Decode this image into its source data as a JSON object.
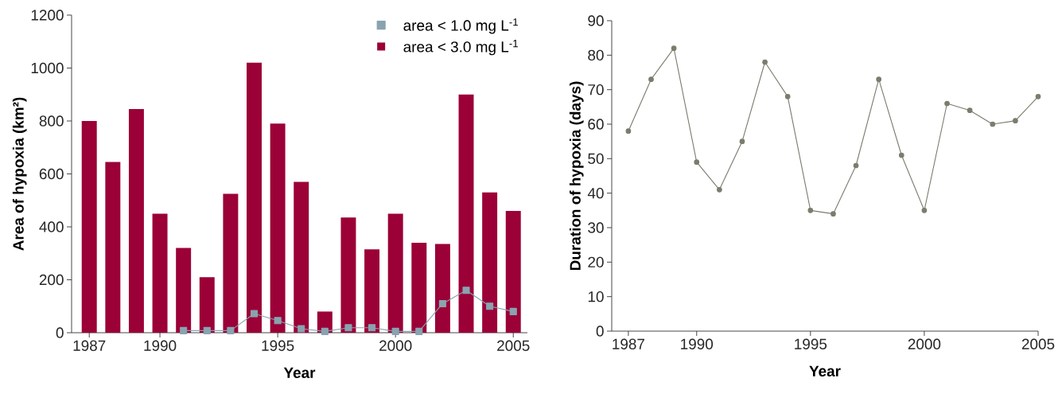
{
  "chart_data": [
    {
      "type": "bar",
      "xlabel": "Year",
      "ylabel": "Area of hypoxia (km²)",
      "xlim": [
        1986.25,
        2005.6
      ],
      "ylim": [
        0,
        1200
      ],
      "xticks": [
        1987,
        1990,
        1995,
        2000,
        2005
      ],
      "yticks": [
        0,
        200,
        400,
        600,
        800,
        1000,
        1200
      ],
      "legend": "top right",
      "series": [
        {
          "name": "area < 3.0 mg L$^{-1}$",
          "type": "bar",
          "color": "#9b0037",
          "x": [
            1987,
            1988,
            1989,
            1990,
            1991,
            1992,
            1993,
            1994,
            1995,
            1996,
            1997,
            1998,
            1999,
            2000,
            2001,
            2002,
            2003,
            2004,
            2005
          ],
          "values": [
            800,
            645,
            845,
            450,
            320,
            210,
            525,
            1020,
            790,
            570,
            80,
            435,
            315,
            450,
            340,
            335,
            900,
            530,
            460
          ]
        },
        {
          "name": "area < 1.0 mg L$^{-1}$",
          "type": "line",
          "marker": "square",
          "color": "#89a3b0",
          "x": [
            1991,
            1992,
            1993,
            1994,
            1995,
            1996,
            1997,
            1998,
            1999,
            2000,
            2001,
            2002,
            2003,
            2004,
            2005
          ],
          "values": [
            8,
            8,
            8,
            72,
            46,
            15,
            5,
            19,
            19,
            5,
            5,
            110,
            160,
            100,
            80
          ]
        }
      ]
    },
    {
      "type": "line",
      "marker": "circle",
      "xlabel": "Year",
      "ylabel": "Duration of hypoxia (days)",
      "xlim": [
        1986.27,
        2005
      ],
      "ylim": [
        0,
        90
      ],
      "xticks": [
        1987,
        1990,
        1995,
        2000,
        2005
      ],
      "yticks": [
        0,
        10,
        20,
        30,
        40,
        50,
        60,
        70,
        80,
        90
      ],
      "series": [
        {
          "color": "#7a7c6d",
          "x": [
            1987,
            1988,
            1989,
            1990,
            1991,
            1992,
            1993,
            1994,
            1995,
            1996,
            1997,
            1998,
            1999,
            2000,
            2001,
            2002,
            2003,
            2004,
            2005
          ],
          "values": [
            58,
            73,
            82,
            49,
            41,
            55,
            78,
            68,
            35,
            34,
            48,
            73,
            51,
            35,
            66,
            64,
            60,
            61,
            68
          ]
        }
      ]
    }
  ]
}
